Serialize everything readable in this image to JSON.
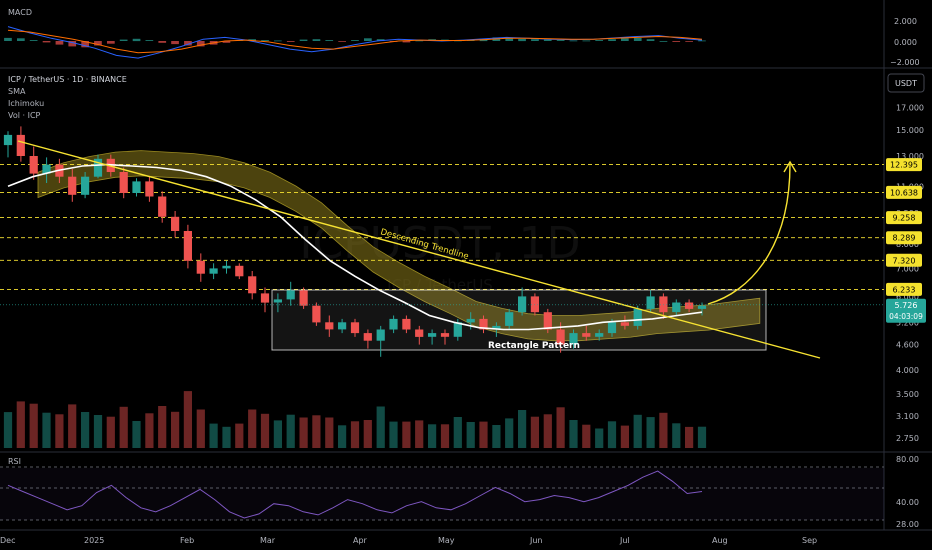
{
  "macd_panel": {
    "label": "MACD",
    "ticks": [
      "2.000",
      "0.000",
      "−2.000"
    ],
    "tick_values": [
      2,
      0,
      -2
    ]
  },
  "main_panel": {
    "symbol_line": "ICP / TetherUS · 1D · BINANCE",
    "indicators": [
      "SMA",
      "Ichimoku",
      "Vol · ICP"
    ],
    "currency_button": "USDT",
    "watermark": "ICPUSDT, 1D",
    "watermark_sub": "ICP / TetherUS",
    "price_ticks": [
      "17.000",
      "15.000",
      "13.000",
      "11.000",
      "9.500",
      "8.000",
      "7.000",
      "6.000",
      "5.200",
      "4.600",
      "4.000",
      "3.500",
      "3.100",
      "2.750"
    ],
    "price_tick_values": [
      17.0,
      15.0,
      13.0,
      11.0,
      9.5,
      8.0,
      7.0,
      6.0,
      5.2,
      4.6,
      4.0,
      3.5,
      3.1,
      2.75
    ],
    "level_labels": [
      "12.395",
      "10.638",
      "9.258",
      "8.289",
      "7.320",
      "6.233"
    ],
    "level_values": [
      12.395,
      10.638,
      9.258,
      8.289,
      7.32,
      6.233
    ],
    "current_price": "5.726",
    "current_price_value": 5.726,
    "countdown": "04:03:09",
    "annotations": {
      "trendline": "Descending Trendline",
      "rectangle": "Rectangle Pattern"
    }
  },
  "rsi_panel": {
    "label": "RSI",
    "ticks": [
      "80.00",
      "40.00",
      "28.00"
    ],
    "tick_values": [
      80,
      40,
      28
    ]
  },
  "time_axis": {
    "labels": [
      "Dec",
      "2025",
      "Feb",
      "Mar",
      "Apr",
      "May",
      "Jun",
      "Jul",
      "Aug",
      "Sep"
    ]
  },
  "colors": {
    "background": "#000000",
    "up": "#26a69a",
    "down": "#ef5350",
    "annotation_yellow": "#f7e332",
    "level_label_bg": "#f5e22e",
    "current_price_bg": "#26a69a",
    "cloud_fill": "#8a7a1a",
    "sma_line": "#ffffff",
    "macd_line": "#2962ff",
    "signal_line": "#ff6d00",
    "rsi_line": "#7e57c2",
    "grid_text": "#b2b5be"
  },
  "chart_data": {
    "type": "candlestick",
    "x": [
      "Dec",
      "2025",
      "Feb",
      "Mar",
      "Apr",
      "May",
      "Jun",
      "Jul",
      "Aug",
      "Sep"
    ],
    "series": [
      {
        "values": [
          [
            13.8,
            14.9,
            12.9,
            14.6
          ],
          [
            14.6,
            15.3,
            12.6,
            13.0
          ],
          [
            13.0,
            13.7,
            11.4,
            11.8
          ],
          [
            11.8,
            12.9,
            11.2,
            12.4
          ],
          [
            12.4,
            12.8,
            11.2,
            11.6
          ],
          [
            11.6,
            12.1,
            10.1,
            10.5
          ],
          [
            10.5,
            11.9,
            10.3,
            11.6
          ],
          [
            11.6,
            13.1,
            11.5,
            12.8
          ],
          [
            12.8,
            13.1,
            11.6,
            11.9
          ],
          [
            11.9,
            12.2,
            10.3,
            10.6
          ],
          [
            10.6,
            11.5,
            10.4,
            11.3
          ],
          [
            11.3,
            11.6,
            10.1,
            10.4
          ],
          [
            10.4,
            10.7,
            9.0,
            9.3
          ],
          [
            9.3,
            9.6,
            8.3,
            8.6
          ],
          [
            8.6,
            8.9,
            7.0,
            7.3
          ],
          [
            7.3,
            7.6,
            6.5,
            6.8
          ],
          [
            6.8,
            7.2,
            6.6,
            7.0
          ],
          [
            7.0,
            7.3,
            6.8,
            7.1
          ],
          [
            7.1,
            7.2,
            6.6,
            6.7
          ],
          [
            6.7,
            6.9,
            5.9,
            6.1
          ],
          [
            6.1,
            6.3,
            5.5,
            5.8
          ],
          [
            5.8,
            6.1,
            5.5,
            5.9
          ],
          [
            5.9,
            6.5,
            5.7,
            6.2
          ],
          [
            6.2,
            6.3,
            5.6,
            5.7
          ],
          [
            5.7,
            5.8,
            5.1,
            5.2
          ],
          [
            5.2,
            5.4,
            4.8,
            5.0
          ],
          [
            5.0,
            5.3,
            4.9,
            5.2
          ],
          [
            5.2,
            5.3,
            4.8,
            4.9
          ],
          [
            4.9,
            5.0,
            4.5,
            4.7
          ],
          [
            4.7,
            5.1,
            4.3,
            5.0
          ],
          [
            5.0,
            5.4,
            4.9,
            5.3
          ],
          [
            5.3,
            5.4,
            4.9,
            5.0
          ],
          [
            5.0,
            5.1,
            4.6,
            4.8
          ],
          [
            4.8,
            5.0,
            4.6,
            4.9
          ],
          [
            4.9,
            5.0,
            4.6,
            4.8
          ],
          [
            4.8,
            5.3,
            4.7,
            5.2
          ],
          [
            5.2,
            5.5,
            5.0,
            5.3
          ],
          [
            5.3,
            5.4,
            4.9,
            5.0
          ],
          [
            5.0,
            5.2,
            4.8,
            5.1
          ],
          [
            5.1,
            5.6,
            5.0,
            5.5
          ],
          [
            5.5,
            6.3,
            5.4,
            6.0
          ],
          [
            6.0,
            6.1,
            5.4,
            5.5
          ],
          [
            5.5,
            5.6,
            4.9,
            5.0
          ],
          [
            5.0,
            5.2,
            4.4,
            4.6
          ],
          [
            4.6,
            5.0,
            4.5,
            4.9
          ],
          [
            4.9,
            5.1,
            4.7,
            4.8
          ],
          [
            4.8,
            5.0,
            4.7,
            4.9
          ],
          [
            4.9,
            5.3,
            4.8,
            5.2
          ],
          [
            5.2,
            5.4,
            5.0,
            5.1
          ],
          [
            5.1,
            5.7,
            5.0,
            5.6
          ],
          [
            5.6,
            6.2,
            5.5,
            6.0
          ],
          [
            6.0,
            6.1,
            5.3,
            5.5
          ],
          [
            5.5,
            5.9,
            5.4,
            5.8
          ],
          [
            5.8,
            5.9,
            5.5,
            5.6
          ],
          [
            5.6,
            5.8,
            5.4,
            5.7
          ]
        ]
      }
    ],
    "sma": [
      11.0,
      11.6,
      12.0,
      12.3,
      12.4,
      12.3,
      12.2,
      12.0,
      11.6,
      11.0,
      10.2,
      9.3,
      8.2,
      7.3,
      6.7,
      6.2,
      5.8,
      5.4,
      5.2,
      5.05,
      5.0,
      5.0,
      5.05,
      5.1,
      5.2,
      5.25,
      5.3,
      5.4,
      5.5
    ],
    "levels": [
      12.395,
      10.638,
      9.258,
      8.289,
      7.32,
      6.233
    ],
    "current": 5.726,
    "macd": {
      "ticks": [
        2,
        0,
        -2
      ],
      "histogram": [
        0.35,
        0.3,
        0.1,
        -0.15,
        -0.4,
        -0.6,
        -0.7,
        -0.5,
        -0.3,
        0.15,
        0.25,
        0.1,
        -0.2,
        -0.35,
        -0.5,
        -0.6,
        -0.4,
        -0.2,
        0.1,
        0.2,
        0.1,
        0.05,
        -0.1,
        0.15,
        0.2,
        0.1,
        -0.05,
        0.1,
        0.3,
        0.2,
        -0.1,
        -0.15,
        0.05,
        0.2,
        0.15,
        0.05,
        0.1,
        0.25,
        0.4,
        0.3,
        0.25,
        0.2,
        0.15,
        0.1,
        0.05,
        0.05,
        0.1,
        0.2,
        0.3,
        0.35,
        0.2,
        0.0,
        -0.1,
        -0.05,
        0.05
      ],
      "macd_line": [
        1.6,
        0.9,
        0.3,
        -0.2,
        -0.8,
        -1.6,
        -1.9,
        -1.3,
        -0.6,
        0.2,
        0.4,
        0.1,
        -0.4,
        -0.9,
        -1.2,
        -0.9,
        -0.4,
        0.0,
        0.2,
        0.1,
        0.0,
        0.1,
        0.25,
        0.4,
        0.3,
        0.2,
        0.15,
        0.2,
        0.35,
        0.5,
        0.6,
        0.3,
        0.1
      ],
      "signal_line": [
        1.2,
        1.0,
        0.6,
        0.2,
        -0.3,
        -0.9,
        -1.3,
        -1.2,
        -0.9,
        -0.4,
        0.0,
        0.1,
        -0.1,
        -0.5,
        -0.8,
        -0.9,
        -0.6,
        -0.3,
        0.0,
        0.1,
        0.05,
        0.05,
        0.15,
        0.3,
        0.3,
        0.25,
        0.2,
        0.2,
        0.3,
        0.4,
        0.5,
        0.4,
        0.2
      ]
    },
    "rsi": {
      "ticks": [
        80,
        40,
        28
      ],
      "values": [
        62,
        56,
        50,
        44,
        38,
        42,
        55,
        62,
        50,
        40,
        36,
        42,
        50,
        58,
        48,
        36,
        30,
        34,
        44,
        42,
        36,
        33,
        40,
        48,
        44,
        38,
        35,
        42,
        46,
        40,
        38,
        44,
        52,
        60,
        54,
        46,
        48,
        52,
        50,
        46,
        50,
        56,
        62,
        70,
        76,
        66,
        54,
        56
      ]
    }
  }
}
